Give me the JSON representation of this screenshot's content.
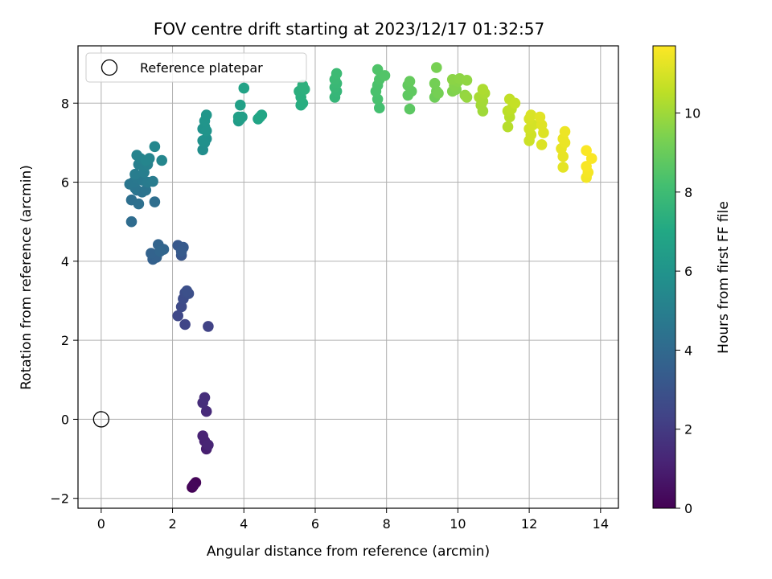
{
  "chart_data": {
    "type": "scatter",
    "title": "FOV centre drift starting at 2023/12/17 01:32:57",
    "xlabel": "Angular distance from reference (arcmin)",
    "ylabel": "Rotation from reference (arcmin)",
    "xlim": [
      -0.65,
      14.5
    ],
    "ylim": [
      -2.25,
      9.45
    ],
    "x_ticks": [
      0,
      2,
      4,
      6,
      8,
      10,
      12,
      14
    ],
    "y_ticks": [
      -2,
      0,
      2,
      4,
      6,
      8
    ],
    "grid": true,
    "legend": {
      "position": "upper-left",
      "entries": [
        "Reference platepar"
      ]
    },
    "reference_point": {
      "x": 0,
      "y": 0,
      "marker": "open-circle",
      "edgecolor": "#000000"
    },
    "colorbar": {
      "label": "Hours from first FF file",
      "range": [
        0,
        11.7
      ],
      "ticks": [
        0,
        2,
        4,
        6,
        8,
        10
      ],
      "colormap": "viridis"
    },
    "series": [
      {
        "colormap": "viridis",
        "points": [
          {
            "x": 2.55,
            "y": -1.72,
            "c": 0.05
          },
          {
            "x": 2.6,
            "y": -1.65,
            "c": 0.1
          },
          {
            "x": 2.65,
            "y": -1.6,
            "c": 0.15
          },
          {
            "x": 2.58,
            "y": -1.68,
            "c": 0.2
          },
          {
            "x": 2.95,
            "y": -0.75,
            "c": 1.0
          },
          {
            "x": 2.9,
            "y": -0.55,
            "c": 1.1
          },
          {
            "x": 2.85,
            "y": -0.42,
            "c": 1.15
          },
          {
            "x": 3.0,
            "y": -0.65,
            "c": 1.2
          },
          {
            "x": 2.95,
            "y": 0.2,
            "c": 1.4
          },
          {
            "x": 2.85,
            "y": 0.42,
            "c": 1.5
          },
          {
            "x": 2.9,
            "y": 0.55,
            "c": 1.55
          },
          {
            "x": 3.0,
            "y": 2.35,
            "c": 2.3
          },
          {
            "x": 2.35,
            "y": 2.4,
            "c": 2.4
          },
          {
            "x": 2.15,
            "y": 2.62,
            "c": 2.5
          },
          {
            "x": 2.25,
            "y": 2.85,
            "c": 2.6
          },
          {
            "x": 2.3,
            "y": 3.05,
            "c": 2.7
          },
          {
            "x": 2.35,
            "y": 3.2,
            "c": 2.75
          },
          {
            "x": 2.45,
            "y": 3.18,
            "c": 2.8
          },
          {
            "x": 2.4,
            "y": 3.25,
            "c": 2.85
          },
          {
            "x": 2.25,
            "y": 4.15,
            "c": 3.1
          },
          {
            "x": 2.15,
            "y": 4.4,
            "c": 3.2
          },
          {
            "x": 2.3,
            "y": 4.35,
            "c": 3.3
          },
          {
            "x": 2.25,
            "y": 4.25,
            "c": 3.35
          },
          {
            "x": 1.45,
            "y": 4.05,
            "c": 3.6
          },
          {
            "x": 1.55,
            "y": 4.1,
            "c": 3.65
          },
          {
            "x": 1.4,
            "y": 4.2,
            "c": 3.7
          },
          {
            "x": 1.6,
            "y": 4.42,
            "c": 3.75
          },
          {
            "x": 1.75,
            "y": 4.3,
            "c": 3.8
          },
          {
            "x": 1.65,
            "y": 4.25,
            "c": 3.85
          },
          {
            "x": 0.85,
            "y": 5.0,
            "c": 4.1
          },
          {
            "x": 1.5,
            "y": 5.5,
            "c": 4.2
          },
          {
            "x": 0.85,
            "y": 5.55,
            "c": 4.25
          },
          {
            "x": 1.05,
            "y": 5.45,
            "c": 4.3
          },
          {
            "x": 1.0,
            "y": 5.8,
            "c": 4.4
          },
          {
            "x": 1.15,
            "y": 5.75,
            "c": 4.45
          },
          {
            "x": 1.25,
            "y": 5.8,
            "c": 4.5
          },
          {
            "x": 0.95,
            "y": 5.85,
            "c": 4.55
          },
          {
            "x": 0.8,
            "y": 5.95,
            "c": 4.6
          },
          {
            "x": 0.9,
            "y": 6.0,
            "c": 4.65
          },
          {
            "x": 1.0,
            "y": 6.1,
            "c": 4.7
          },
          {
            "x": 1.15,
            "y": 6.05,
            "c": 4.75
          },
          {
            "x": 1.3,
            "y": 6.0,
            "c": 4.8
          },
          {
            "x": 1.45,
            "y": 6.02,
            "c": 4.85
          },
          {
            "x": 0.95,
            "y": 6.2,
            "c": 4.9
          },
          {
            "x": 1.2,
            "y": 6.25,
            "c": 4.95
          },
          {
            "x": 1.05,
            "y": 6.45,
            "c": 5.0
          },
          {
            "x": 1.2,
            "y": 6.4,
            "c": 5.05
          },
          {
            "x": 1.3,
            "y": 6.45,
            "c": 5.1
          },
          {
            "x": 1.1,
            "y": 6.6,
            "c": 5.15
          },
          {
            "x": 1.0,
            "y": 6.68,
            "c": 5.2
          },
          {
            "x": 1.35,
            "y": 6.6,
            "c": 5.25
          },
          {
            "x": 1.25,
            "y": 6.55,
            "c": 5.3
          },
          {
            "x": 1.7,
            "y": 6.55,
            "c": 5.35
          },
          {
            "x": 1.5,
            "y": 6.9,
            "c": 5.4
          },
          {
            "x": 2.85,
            "y": 6.82,
            "c": 5.7
          },
          {
            "x": 2.9,
            "y": 7.0,
            "c": 5.75
          },
          {
            "x": 2.95,
            "y": 7.1,
            "c": 5.8
          },
          {
            "x": 2.85,
            "y": 7.05,
            "c": 5.85
          },
          {
            "x": 2.85,
            "y": 7.35,
            "c": 5.9
          },
          {
            "x": 2.9,
            "y": 7.4,
            "c": 5.95
          },
          {
            "x": 2.95,
            "y": 7.3,
            "c": 6.0
          },
          {
            "x": 2.9,
            "y": 7.55,
            "c": 6.05
          },
          {
            "x": 2.95,
            "y": 7.7,
            "c": 6.1
          },
          {
            "x": 3.85,
            "y": 7.55,
            "c": 6.4
          },
          {
            "x": 3.9,
            "y": 7.6,
            "c": 6.45
          },
          {
            "x": 3.95,
            "y": 7.65,
            "c": 6.5
          },
          {
            "x": 3.85,
            "y": 7.65,
            "c": 6.55
          },
          {
            "x": 3.9,
            "y": 7.95,
            "c": 6.6
          },
          {
            "x": 4.0,
            "y": 8.38,
            "c": 6.7
          },
          {
            "x": 4.4,
            "y": 7.6,
            "c": 6.8
          },
          {
            "x": 4.5,
            "y": 7.7,
            "c": 6.85
          },
          {
            "x": 4.45,
            "y": 7.65,
            "c": 6.9
          },
          {
            "x": 5.6,
            "y": 7.95,
            "c": 7.2
          },
          {
            "x": 5.65,
            "y": 8.0,
            "c": 7.25
          },
          {
            "x": 5.6,
            "y": 8.15,
            "c": 7.3
          },
          {
            "x": 5.55,
            "y": 8.3,
            "c": 7.35
          },
          {
            "x": 5.7,
            "y": 8.35,
            "c": 7.4
          },
          {
            "x": 5.65,
            "y": 8.45,
            "c": 7.45
          },
          {
            "x": 6.55,
            "y": 8.15,
            "c": 7.7
          },
          {
            "x": 6.6,
            "y": 8.3,
            "c": 7.75
          },
          {
            "x": 6.55,
            "y": 8.4,
            "c": 7.8
          },
          {
            "x": 6.6,
            "y": 8.5,
            "c": 7.85
          },
          {
            "x": 6.55,
            "y": 8.6,
            "c": 7.9
          },
          {
            "x": 6.6,
            "y": 8.75,
            "c": 7.95
          },
          {
            "x": 7.8,
            "y": 7.88,
            "c": 8.2
          },
          {
            "x": 7.75,
            "y": 8.1,
            "c": 8.25
          },
          {
            "x": 7.7,
            "y": 8.3,
            "c": 8.3
          },
          {
            "x": 7.75,
            "y": 8.45,
            "c": 8.35
          },
          {
            "x": 7.8,
            "y": 8.6,
            "c": 8.4
          },
          {
            "x": 7.75,
            "y": 8.85,
            "c": 8.45
          },
          {
            "x": 7.95,
            "y": 8.7,
            "c": 8.5
          },
          {
            "x": 8.65,
            "y": 7.85,
            "c": 8.7
          },
          {
            "x": 8.6,
            "y": 8.2,
            "c": 8.75
          },
          {
            "x": 8.7,
            "y": 8.3,
            "c": 8.8
          },
          {
            "x": 8.6,
            "y": 8.45,
            "c": 8.85
          },
          {
            "x": 8.65,
            "y": 8.55,
            "c": 8.9
          },
          {
            "x": 9.35,
            "y": 8.15,
            "c": 9.1
          },
          {
            "x": 9.4,
            "y": 8.3,
            "c": 9.15
          },
          {
            "x": 9.35,
            "y": 8.5,
            "c": 9.2
          },
          {
            "x": 9.45,
            "y": 8.25,
            "c": 9.25
          },
          {
            "x": 9.4,
            "y": 8.9,
            "c": 9.3
          },
          {
            "x": 9.85,
            "y": 8.3,
            "c": 9.45
          },
          {
            "x": 9.95,
            "y": 8.35,
            "c": 9.5
          },
          {
            "x": 9.9,
            "y": 8.45,
            "c": 9.55
          },
          {
            "x": 10.0,
            "y": 8.55,
            "c": 9.6
          },
          {
            "x": 9.85,
            "y": 8.6,
            "c": 9.65
          },
          {
            "x": 10.05,
            "y": 8.62,
            "c": 9.7
          },
          {
            "x": 10.25,
            "y": 8.58,
            "c": 9.75
          },
          {
            "x": 10.2,
            "y": 8.2,
            "c": 9.8
          },
          {
            "x": 10.25,
            "y": 8.15,
            "c": 9.85
          },
          {
            "x": 10.7,
            "y": 7.8,
            "c": 10.0
          },
          {
            "x": 10.65,
            "y": 7.95,
            "c": 10.05
          },
          {
            "x": 10.7,
            "y": 8.05,
            "c": 10.1
          },
          {
            "x": 10.6,
            "y": 8.15,
            "c": 10.15
          },
          {
            "x": 10.75,
            "y": 8.25,
            "c": 10.2
          },
          {
            "x": 10.7,
            "y": 8.35,
            "c": 10.25
          },
          {
            "x": 11.4,
            "y": 7.4,
            "c": 10.4
          },
          {
            "x": 11.45,
            "y": 7.65,
            "c": 10.45
          },
          {
            "x": 11.4,
            "y": 7.8,
            "c": 10.5
          },
          {
            "x": 11.5,
            "y": 7.85,
            "c": 10.55
          },
          {
            "x": 11.45,
            "y": 8.1,
            "c": 10.6
          },
          {
            "x": 11.6,
            "y": 8.0,
            "c": 10.65
          },
          {
            "x": 12.0,
            "y": 7.05,
            "c": 10.8
          },
          {
            "x": 12.05,
            "y": 7.2,
            "c": 10.85
          },
          {
            "x": 12.0,
            "y": 7.35,
            "c": 10.9
          },
          {
            "x": 12.1,
            "y": 7.45,
            "c": 10.95
          },
          {
            "x": 12.0,
            "y": 7.6,
            "c": 11.0
          },
          {
            "x": 12.05,
            "y": 7.7,
            "c": 11.05
          },
          {
            "x": 12.35,
            "y": 6.95,
            "c": 11.1
          },
          {
            "x": 12.4,
            "y": 7.25,
            "c": 11.12
          },
          {
            "x": 12.35,
            "y": 7.45,
            "c": 11.15
          },
          {
            "x": 12.3,
            "y": 7.65,
            "c": 11.18
          },
          {
            "x": 12.95,
            "y": 6.38,
            "c": 11.25
          },
          {
            "x": 12.95,
            "y": 6.65,
            "c": 11.3
          },
          {
            "x": 12.9,
            "y": 6.85,
            "c": 11.32
          },
          {
            "x": 13.0,
            "y": 7.0,
            "c": 11.35
          },
          {
            "x": 12.95,
            "y": 7.1,
            "c": 11.38
          },
          {
            "x": 13.0,
            "y": 7.28,
            "c": 11.4
          },
          {
            "x": 13.6,
            "y": 6.12,
            "c": 11.5
          },
          {
            "x": 13.65,
            "y": 6.25,
            "c": 11.55
          },
          {
            "x": 13.6,
            "y": 6.4,
            "c": 11.6
          },
          {
            "x": 13.75,
            "y": 6.6,
            "c": 11.62
          },
          {
            "x": 13.6,
            "y": 6.8,
            "c": 11.65
          }
        ]
      }
    ]
  }
}
